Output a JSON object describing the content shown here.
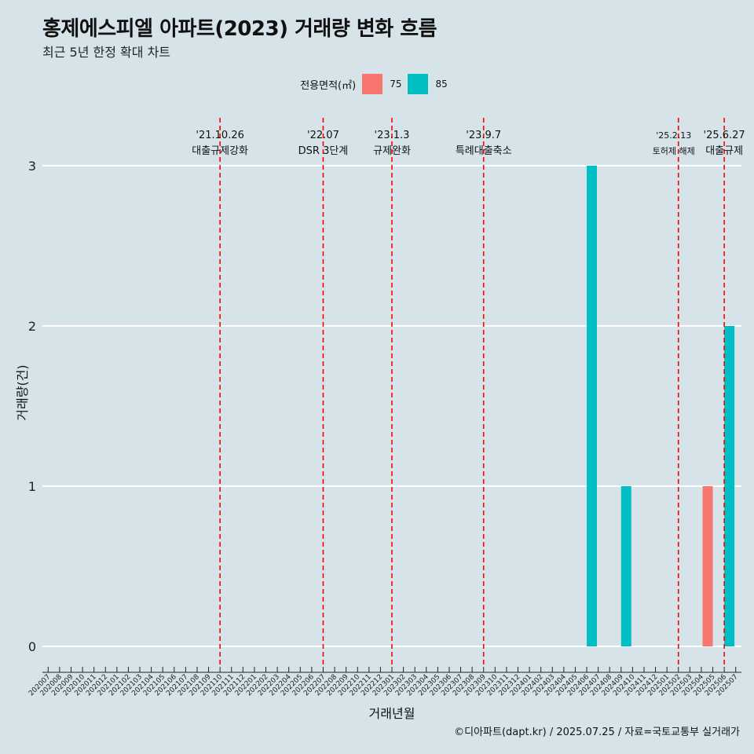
{
  "chart_data": {
    "type": "bar",
    "title": "홍제에스피엘 아파트(2023) 거래량 변화 흐름",
    "subtitle": "최근 5년 한정 확대 차트",
    "xlabel": "거래년월",
    "ylabel": "거래량(건)",
    "ylim": [
      0,
      3
    ],
    "yticks": [
      "0",
      "1",
      "2",
      "3"
    ],
    "legend": {
      "title": "전용면적(㎡)",
      "position": "top",
      "entries": [
        {
          "label": "75",
          "color": "#f8766d"
        },
        {
          "label": "85",
          "color": "#00bfc4"
        }
      ]
    },
    "categories": [
      "202007",
      "202008",
      "202009",
      "202010",
      "202011",
      "202012",
      "202101",
      "202102",
      "202103",
      "202104",
      "202105",
      "202106",
      "202107",
      "202108",
      "202109",
      "202110",
      "202111",
      "202112",
      "202201",
      "202202",
      "202203",
      "202204",
      "202205",
      "202206",
      "202207",
      "202208",
      "202209",
      "202210",
      "202211",
      "202212",
      "202301",
      "202302",
      "202303",
      "202304",
      "202305",
      "202306",
      "202307",
      "202308",
      "202309",
      "202310",
      "202311",
      "202312",
      "202401",
      "202402",
      "202403",
      "202404",
      "202405",
      "202406",
      "202407",
      "202408",
      "202409",
      "202410",
      "202411",
      "202412",
      "202501",
      "202502",
      "202503",
      "202504",
      "202505",
      "202506",
      "202507"
    ],
    "series": [
      {
        "name": "75",
        "color": "#f8766d",
        "points": [
          {
            "x": "202505",
            "y": 1
          }
        ]
      },
      {
        "name": "85",
        "color": "#00bfc4",
        "points": [
          {
            "x": "202406",
            "y": 3
          },
          {
            "x": "202409",
            "y": 1
          },
          {
            "x": "202506",
            "y": 2
          }
        ]
      }
    ],
    "events": [
      {
        "date": "'21.10.26",
        "label": "대출규제강화",
        "x": "202110"
      },
      {
        "date": "'22.07",
        "label": "DSR 3단계",
        "x": "202207"
      },
      {
        "date": "'23.1.3",
        "label": "규제완화",
        "x": "202301"
      },
      {
        "date": "'23.9.7",
        "label": "특례대출축소",
        "x": "202309"
      },
      {
        "date": "'25.2.13",
        "label": "토허제 해제",
        "x": "202502"
      },
      {
        "date": "'25.6.27",
        "label": "대출규제",
        "x": "202506"
      }
    ],
    "event_line_color": "#ff0000",
    "grid": true
  },
  "caption": "©디아파트(dapt.kr) / 2025.07.25 / 자료=국토교통부 실거래가"
}
